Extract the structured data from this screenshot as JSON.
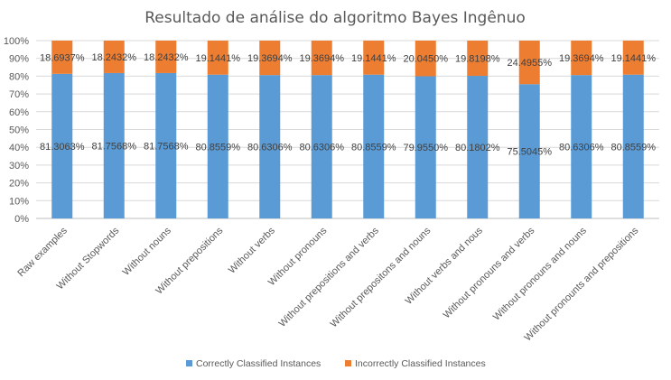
{
  "chart_data": {
    "type": "bar",
    "stacked": true,
    "normalized": true,
    "title": "Resultado de análise do algoritmo Bayes Ingênuo",
    "xlabel": "",
    "ylabel": "",
    "ylim": [
      0,
      100
    ],
    "yticks": [
      "0%",
      "10%",
      "20%",
      "30%",
      "40%",
      "50%",
      "60%",
      "70%",
      "80%",
      "90%",
      "100%"
    ],
    "grid": true,
    "legend_position": "bottom",
    "categories": [
      "Raw examples",
      "Without Stopwords",
      "Without nouns",
      "Without prepositions",
      "Without verbs",
      "Without pronouns",
      "Without prepositions and verbs",
      "Without prepositons and nouns",
      "Without verbs and nous",
      "Without pronouns and verbs",
      "Without pronouns and nouns",
      "Without pronounts and prepositions"
    ],
    "series": [
      {
        "name": "Correctly Classified Instances",
        "color": "#5B9BD5",
        "values": [
          81.3063,
          81.7568,
          81.7568,
          80.8559,
          80.6306,
          80.6306,
          80.8559,
          79.955,
          80.1802,
          75.5045,
          80.6306,
          80.8559
        ],
        "labels": [
          "81.3063%",
          "81.7568%",
          "81.7568%",
          "80.8559%",
          "80.6306%",
          "80.6306%",
          "80.8559%",
          "79.9550%",
          "80.1802%",
          "75.5045%",
          "80.6306%",
          "80.8559%"
        ]
      },
      {
        "name": "Incorrectly Classified Instances",
        "color": "#ED7D31",
        "values": [
          18.6937,
          18.2432,
          18.2432,
          19.1441,
          19.3694,
          19.3694,
          19.1441,
          20.045,
          19.8198,
          24.4955,
          19.3694,
          19.1441
        ],
        "labels": [
          "18.6937%",
          "18.2432%",
          "18.2432%",
          "19.1441%",
          "19.3694%",
          "19.3694%",
          "19.1441%",
          "20.0450%",
          "19.8198%",
          "24.4955%",
          "19.3694%",
          "19.1441%"
        ]
      }
    ]
  }
}
